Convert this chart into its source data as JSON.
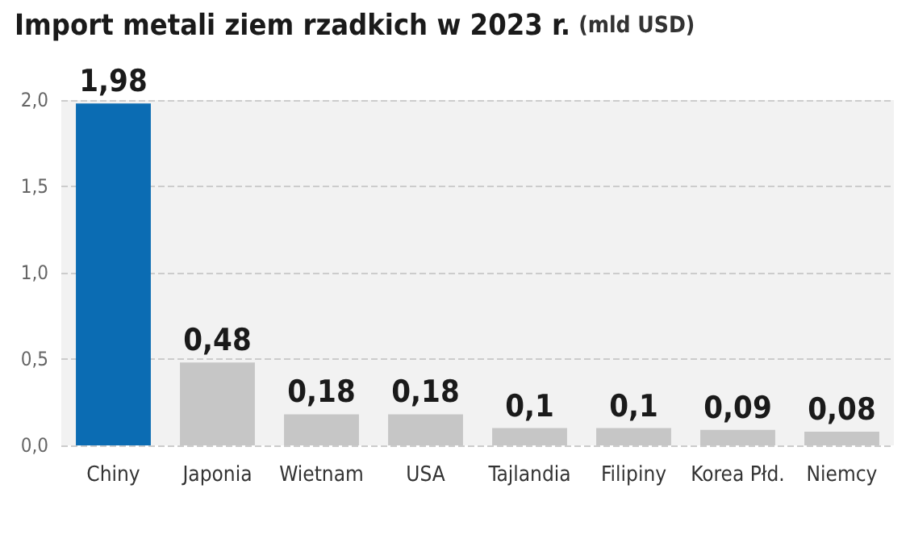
{
  "chart_data": {
    "type": "bar",
    "title": "Import metali ziem rzadkich w 2023 r.",
    "subtitle": "(mld USD)",
    "categories": [
      "Chiny",
      "Japonia",
      "Wietnam",
      "USA",
      "Tajlandia",
      "Filipiny",
      "Korea Płd.",
      "Niemcy"
    ],
    "values": [
      1.98,
      0.48,
      0.18,
      0.18,
      0.1,
      0.1,
      0.09,
      0.08
    ],
    "colors": [
      "#0b6cb3",
      "#c6c6c6",
      "#c6c6c6",
      "#c6c6c6",
      "#c6c6c6",
      "#c6c6c6",
      "#c6c6c6",
      "#c6c6c6"
    ],
    "value_labels": [
      "1,98",
      "0,48",
      "0,18",
      "0,18",
      "0,1",
      "0,1",
      "0,09",
      "0,08"
    ],
    "ylim": [
      0,
      2
    ],
    "yticks": [
      {
        "value": 0,
        "label": "0,0"
      },
      {
        "value": 0.5,
        "label": "0,5"
      },
      {
        "value": 1,
        "label": "1,0"
      },
      {
        "value": 1.5,
        "label": "1,5"
      },
      {
        "value": 2,
        "label": "2,0"
      }
    ],
    "grid": "y"
  }
}
